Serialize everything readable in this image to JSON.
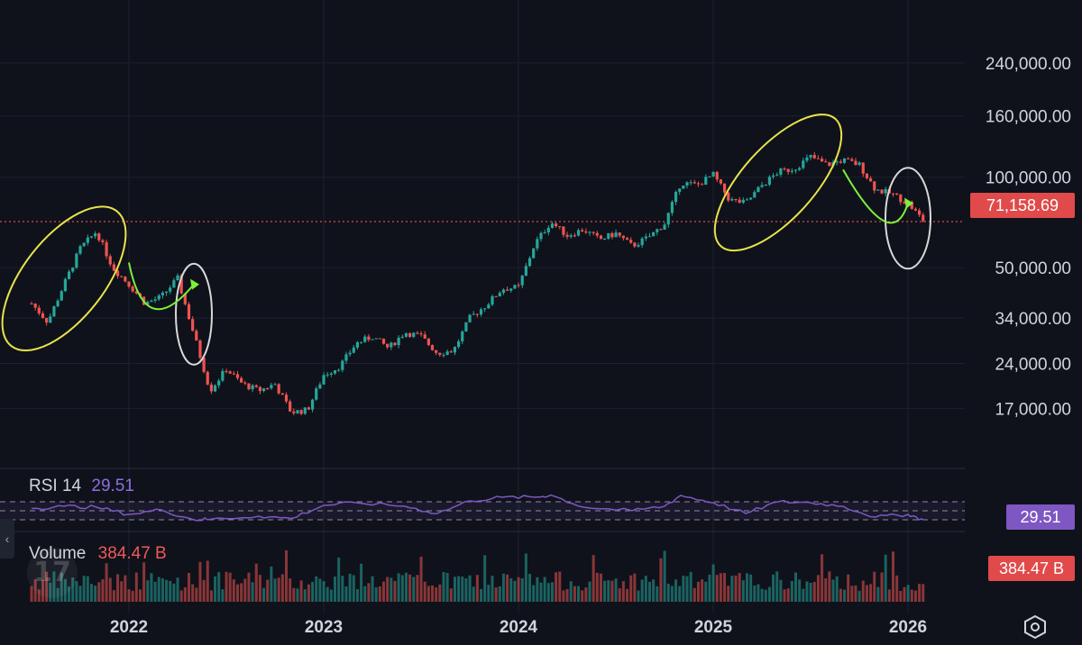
{
  "chart_data": {
    "type": "candlestick",
    "scale": "log",
    "grid": true,
    "current_price": 71158.69,
    "current_price_label": "71,158.69",
    "price_ticks": [
      {
        "value": 240000,
        "label": "240,000.00"
      },
      {
        "value": 160000,
        "label": "160,000.00"
      },
      {
        "value": 100000,
        "label": "100,000.00"
      },
      {
        "value": 50000,
        "label": "50,000.00"
      },
      {
        "value": 34000,
        "label": "34,000.00"
      },
      {
        "value": 24000,
        "label": "24,000.00"
      },
      {
        "value": 17000,
        "label": "17,000.00"
      }
    ],
    "time_ticks": [
      {
        "date": "2022-01",
        "label": "2022"
      },
      {
        "date": "2023-01",
        "label": "2023"
      },
      {
        "date": "2024-01",
        "label": "2024"
      },
      {
        "date": "2025-01",
        "label": "2025"
      },
      {
        "date": "2026-01",
        "label": "2026"
      }
    ],
    "price_path": [
      [
        "2021-07",
        38000
      ],
      [
        "2021-08",
        33000
      ],
      [
        "2021-09",
        44000
      ],
      [
        "2021-10",
        58000
      ],
      [
        "2021-11",
        66000
      ],
      [
        "2021-12",
        50000
      ],
      [
        "2022-01",
        44000
      ],
      [
        "2022-02",
        38000
      ],
      [
        "2022-03",
        40000
      ],
      [
        "2022-04",
        46000
      ],
      [
        "2022-05",
        30000
      ],
      [
        "2022-06",
        19500
      ],
      [
        "2022-07",
        23000
      ],
      [
        "2022-08",
        20500
      ],
      [
        "2022-09",
        19500
      ],
      [
        "2022-10",
        20500
      ],
      [
        "2022-11",
        16500
      ],
      [
        "2022-12",
        16800
      ],
      [
        "2023-01",
        22000
      ],
      [
        "2023-02",
        23500
      ],
      [
        "2023-03",
        28000
      ],
      [
        "2023-04",
        29500
      ],
      [
        "2023-05",
        27000
      ],
      [
        "2023-06",
        30500
      ],
      [
        "2023-07",
        29500
      ],
      [
        "2023-08",
        26000
      ],
      [
        "2023-09",
        26500
      ],
      [
        "2023-10",
        34000
      ],
      [
        "2023-11",
        37500
      ],
      [
        "2023-12",
        42500
      ],
      [
        "2024-01",
        43000
      ],
      [
        "2024-02",
        60000
      ],
      [
        "2024-03",
        71000
      ],
      [
        "2024-04",
        64000
      ],
      [
        "2024-05",
        67000
      ],
      [
        "2024-06",
        62000
      ],
      [
        "2024-07",
        65000
      ],
      [
        "2024-08",
        59000
      ],
      [
        "2024-09",
        63000
      ],
      [
        "2024-10",
        70000
      ],
      [
        "2024-11",
        96000
      ],
      [
        "2024-12",
        94000
      ],
      [
        "2025-01",
        102000
      ],
      [
        "2025-02",
        84000
      ],
      [
        "2025-03",
        82000
      ],
      [
        "2025-04",
        94000
      ],
      [
        "2025-05",
        104000
      ],
      [
        "2025-06",
        107000
      ],
      [
        "2025-07",
        117000
      ],
      [
        "2025-08",
        110000
      ],
      [
        "2025-09",
        114000
      ],
      [
        "2025-10",
        110000
      ],
      [
        "2025-11",
        91000
      ],
      [
        "2025-12",
        88000
      ],
      [
        "2026-01",
        82000
      ],
      [
        "2026-02",
        71158.69
      ]
    ],
    "rsi": {
      "label": "RSI",
      "length": "14",
      "value_label": "29.51",
      "upper": 70,
      "middle": 50,
      "lower": 30,
      "path": [
        [
          "2021-07",
          55
        ],
        [
          "2021-09",
          60
        ],
        [
          "2021-11",
          58
        ],
        [
          "2022-01",
          42
        ],
        [
          "2022-03",
          52
        ],
        [
          "2022-05",
          30
        ],
        [
          "2022-06",
          31
        ],
        [
          "2022-09",
          38
        ],
        [
          "2022-11",
          33
        ],
        [
          "2023-01",
          62
        ],
        [
          "2023-03",
          68
        ],
        [
          "2023-06",
          60
        ],
        [
          "2023-08",
          44
        ],
        [
          "2023-10",
          72
        ],
        [
          "2023-12",
          80
        ],
        [
          "2024-02",
          80
        ],
        [
          "2024-03",
          85
        ],
        [
          "2024-05",
          58
        ],
        [
          "2024-08",
          50
        ],
        [
          "2024-10",
          60
        ],
        [
          "2024-11",
          84
        ],
        [
          "2025-01",
          68
        ],
        [
          "2025-03",
          44
        ],
        [
          "2025-05",
          70
        ],
        [
          "2025-07",
          68
        ],
        [
          "2025-09",
          60
        ],
        [
          "2025-11",
          36
        ],
        [
          "2026-01",
          42
        ],
        [
          "2026-02",
          29.51
        ]
      ]
    },
    "volume": {
      "label": "Volume",
      "value_label": "384.47 B",
      "badge_label": "384.47 B"
    }
  },
  "annotations": {
    "yellow_ellipses": [
      "2021-peak-run",
      "2025-peak-run"
    ],
    "green_arcs": [
      "2022-bounce",
      "2025-bounce"
    ],
    "white_ellipses": [
      "2022-breakdown",
      "2026-breakdown"
    ],
    "colors": {
      "yellow": "#e8e34a",
      "green": "#7cf03a",
      "white": "#d8d8d8"
    }
  },
  "theme": {
    "background": "#0f121b",
    "up": "#26a69a",
    "down": "#ef5350",
    "rsi_line": "#7e57c2",
    "grid": "#1c2030"
  },
  "ui": {
    "side_tab_glyph": "‹",
    "watermark_glyph": "17",
    "settings_icon": "hexagon-gear-icon"
  }
}
